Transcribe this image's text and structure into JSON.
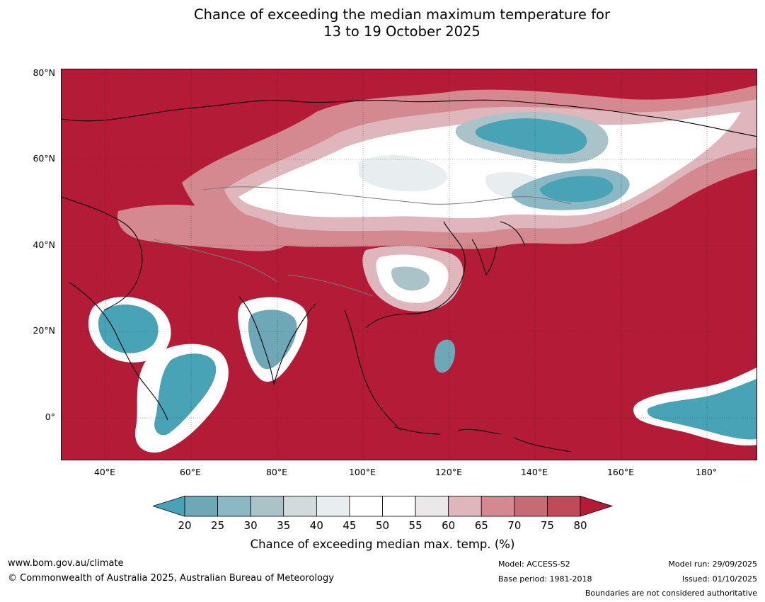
{
  "title": {
    "line1": "Chance of exceeding the median maximum temperature for",
    "line2": "13 to 19 October 2025"
  },
  "map": {
    "latitude_labels": [
      "80°N",
      "60°N",
      "40°N",
      "20°N",
      "0°"
    ],
    "longitude_labels": [
      "40°E",
      "60°E",
      "80°E",
      "100°E",
      "120°E",
      "140°E",
      "160°E",
      "180°"
    ]
  },
  "colorbar": {
    "ticks": [
      "20",
      "25",
      "30",
      "35",
      "40",
      "45",
      "50",
      "55",
      "60",
      "65",
      "70",
      "75",
      "80"
    ],
    "colors": [
      "#47a3b5",
      "#6ea8b6",
      "#8ab8c4",
      "#aac3c9",
      "#d2dadc",
      "#e8eef0",
      "#ffffff",
      "#ffffff",
      "#ece8e9",
      "#deb6bc",
      "#d48991",
      "#c66a74",
      "#bf4b58",
      "#b31b36"
    ],
    "label": "Chance of exceeding median max. temp. (%)"
  },
  "footer": {
    "website": "www.bom.gov.au/climate",
    "copyright": "© Commonwealth of Australia 2025, Australian Bureau of Meteorology",
    "model": "Model: ACCESS-S2",
    "base_period": "Base period: 1981-2018",
    "model_run": "Model run: 29/09/2025",
    "issued": "Issued: 01/10/2025",
    "disclaimer": "Boundaries are not considered authoritative"
  }
}
